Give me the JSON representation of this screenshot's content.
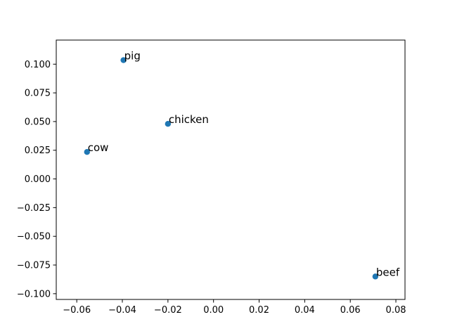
{
  "chart_data": {
    "type": "scatter",
    "title": "",
    "xlabel": "",
    "ylabel": "",
    "xlim": [
      -0.069,
      0.084
    ],
    "ylim": [
      -0.105,
      0.121
    ],
    "x_ticks": [
      -0.06,
      -0.04,
      -0.02,
      0.0,
      0.02,
      0.04,
      0.06,
      0.08
    ],
    "x_tick_labels": [
      "−0.06",
      "−0.04",
      "−0.02",
      "0.00",
      "0.02",
      "0.04",
      "0.06",
      "0.08"
    ],
    "y_ticks": [
      0.1,
      0.075,
      0.05,
      0.025,
      0.0,
      -0.025,
      -0.05,
      -0.075,
      -0.1
    ],
    "y_tick_labels": [
      "0.100",
      "0.075",
      "0.050",
      "0.025",
      "0.000",
      "−0.025",
      "−0.050",
      "−0.075",
      "−0.100"
    ],
    "grid": false,
    "marker_color": "#1f77b4",
    "points": [
      {
        "label": "pig",
        "x": -0.0395,
        "y": 0.1035
      },
      {
        "label": "chicken",
        "x": -0.02,
        "y": 0.048
      },
      {
        "label": "cow",
        "x": -0.0555,
        "y": 0.0235
      },
      {
        "label": "beef",
        "x": 0.071,
        "y": -0.085
      }
    ]
  }
}
